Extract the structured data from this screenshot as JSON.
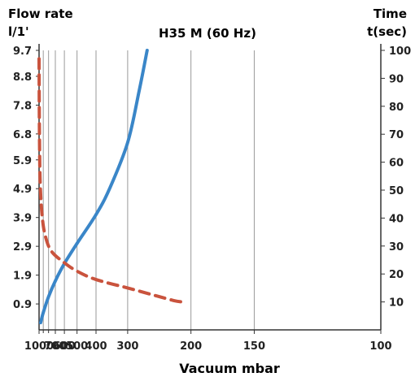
{
  "chart_data": {
    "type": "line",
    "title": "H35 M (60 Hz)",
    "xlabel": "Vacuum mbar",
    "ylabel_left_line1": "Flow rate",
    "ylabel_left_line2": "l/1'",
    "ylabel_right_line1": "Time",
    "ylabel_right_line2": "t(sec)",
    "x_ticks": [
      {
        "label": "1000",
        "value": 1000
      },
      {
        "label": "700",
        "value": 700
      },
      {
        "label": "600",
        "value": 600
      },
      {
        "label": "500",
        "value": 500
      },
      {
        "label": "400",
        "value": 400
      },
      {
        "label": "300",
        "value": 300
      },
      {
        "label": "200",
        "value": 200
      },
      {
        "label": "150",
        "value": 150
      },
      {
        "label": "100",
        "value": 100
      }
    ],
    "x_minor_ticks": [
      900,
      800
    ],
    "y_left_ticks": [
      "9.7",
      "8.8",
      "7.8",
      "6.8",
      "5.9",
      "4.9",
      "3.9",
      "2.9",
      "1.9",
      "0.9"
    ],
    "y_right_ticks": [
      100,
      90,
      80,
      70,
      60,
      50,
      40,
      30,
      20,
      10
    ],
    "ylim_left": [
      0,
      9.7
    ],
    "ylim_right": [
      0,
      100
    ],
    "grid": true,
    "series": [
      {
        "axis": "left",
        "style": "solid",
        "color": "#3a86c8",
        "points": [
          [
            960,
            0.25
          ],
          [
            900,
            0.6
          ],
          [
            800,
            1.15
          ],
          [
            700,
            1.7
          ],
          [
            600,
            2.3
          ],
          [
            500,
            3.0
          ],
          [
            400,
            4.0
          ],
          [
            350,
            4.9
          ],
          [
            300,
            6.5
          ],
          [
            275,
            8.3
          ],
          [
            260,
            9.7
          ]
        ]
      },
      {
        "axis": "right",
        "style": "dashed",
        "color": "#c9533d",
        "points": [
          [
            1000,
            97
          ],
          [
            990,
            70
          ],
          [
            970,
            52
          ],
          [
            920,
            40
          ],
          [
            850,
            33
          ],
          [
            750,
            28
          ],
          [
            600,
            24
          ],
          [
            500,
            21
          ],
          [
            400,
            18
          ],
          [
            300,
            15
          ],
          [
            250,
            12.5
          ],
          [
            220,
            10.5
          ],
          [
            210,
            10
          ]
        ]
      }
    ]
  }
}
